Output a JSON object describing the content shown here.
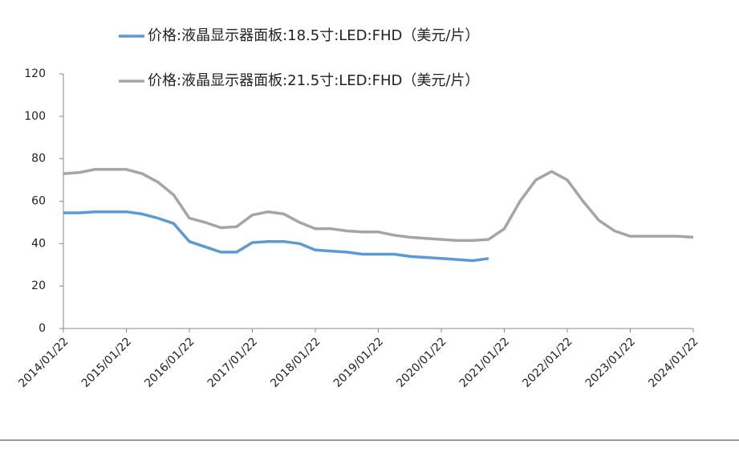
{
  "chart_data": {
    "type": "line",
    "categories": [
      "2014/01/22",
      null,
      null,
      null,
      "2015/01/22",
      null,
      null,
      null,
      "2016/01/22",
      null,
      null,
      null,
      "2017/01/22",
      null,
      null,
      null,
      "2018/01/22",
      null,
      null,
      null,
      "2019/01/22",
      null,
      null,
      null,
      "2020/01/22",
      null,
      null,
      null,
      "2021/01/22",
      null,
      null,
      null,
      "2022/01/22",
      null,
      null,
      null,
      "2023/01/22",
      null,
      null,
      null,
      "2024/01/22"
    ],
    "series": [
      {
        "name": "价格:液晶显示器面板:18.5寸:LED:FHD（美元/片）",
        "color": "#5b9bd5",
        "values": [
          54.5,
          54.5,
          55,
          55,
          55,
          54,
          52,
          49.5,
          41,
          38.5,
          36,
          36,
          40.5,
          41,
          41,
          40,
          37,
          36.5,
          36,
          35,
          35,
          35,
          34,
          33.5,
          33,
          32.5,
          32,
          33,
          null,
          null,
          null,
          null,
          null,
          null,
          null,
          null,
          null,
          null,
          null,
          null,
          null
        ]
      },
      {
        "name": "价格:液晶显示器面板:21.5寸:LED:FHD（美元/片）",
        "color": "#a5a5a5",
        "values": [
          73,
          73.5,
          75,
          75,
          75,
          73,
          69,
          63,
          52,
          50,
          47.5,
          48,
          53.5,
          55,
          54,
          50,
          47,
          47,
          46,
          45.5,
          45.5,
          44,
          43,
          42.5,
          42,
          41.5,
          41.5,
          42,
          47,
          60,
          70,
          74,
          70,
          60,
          51,
          46,
          43.5,
          43.5,
          43.5,
          43.5,
          43
        ]
      }
    ],
    "ylim": [
      0,
      120
    ],
    "yticks": [
      0,
      20,
      40,
      60,
      80,
      100,
      120
    ]
  }
}
